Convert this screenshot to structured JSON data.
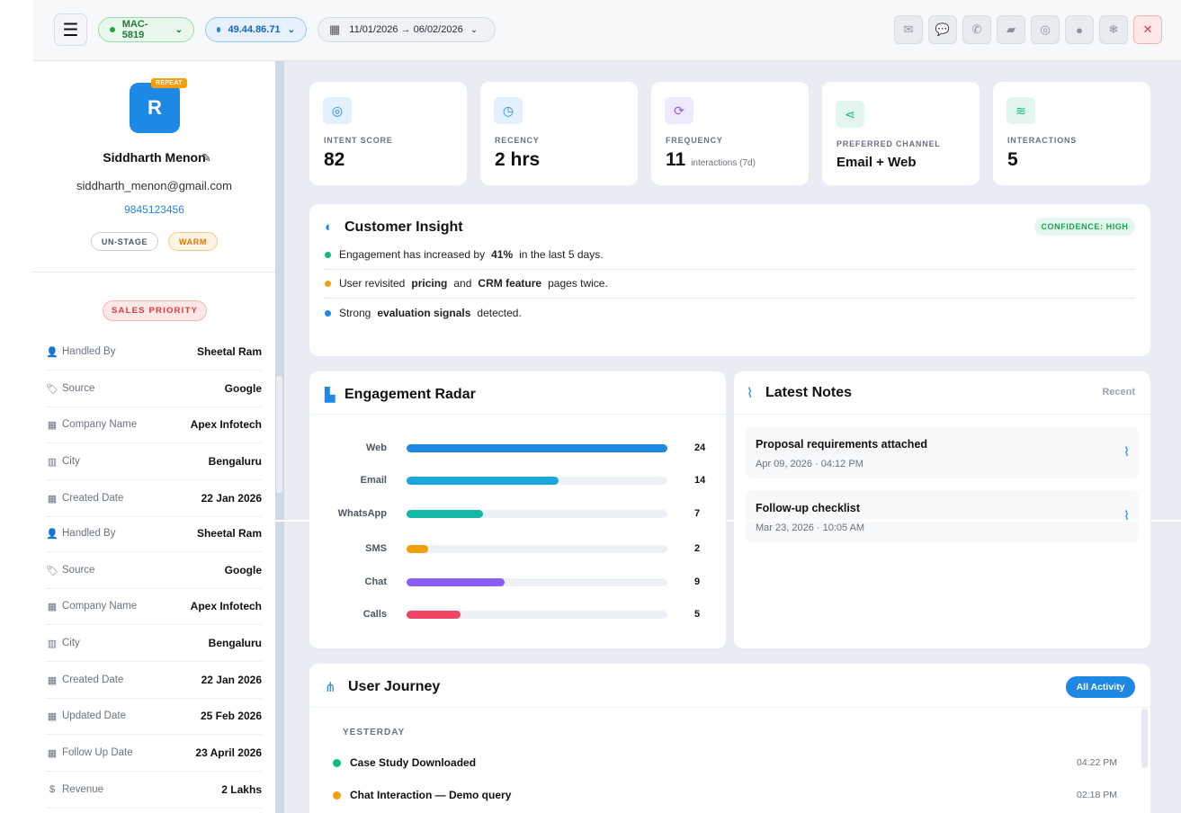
{
  "topbar": {
    "menu_icon": "hamburger-icon",
    "mac_id": "MAC-5819",
    "ip": "49.44.86.71",
    "date_range": "11/01/2026 → 06/02/2026",
    "actions": [
      "mail-icon",
      "message-icon",
      "phone-icon",
      "note-icon",
      "whatsapp-icon",
      "chat-icon",
      "snowflake-icon",
      "close-icon"
    ]
  },
  "profile": {
    "initial": "R",
    "badge": "REPEAT",
    "name": "Siddharth Menon",
    "email": "siddharth_menon@gmail.com",
    "phone": "9845123456",
    "stage": "UN-STAGE",
    "temperature": "WARM",
    "priority": "SALES PRIORITY"
  },
  "details": [
    {
      "icon": "user-icon",
      "label": "Handled By",
      "value": "Sheetal Ram"
    },
    {
      "icon": "tag-icon",
      "label": "Source",
      "value": "Google"
    },
    {
      "icon": "building-icon",
      "label": "Company Name",
      "value": "Apex Infotech"
    },
    {
      "icon": "city-icon",
      "label": "City",
      "value": "Bengaluru"
    },
    {
      "icon": "calendar-icon",
      "label": "Created Date",
      "value": "22 Jan 2026"
    },
    {
      "icon": "user-icon",
      "label": "Handled By",
      "value": "Sheetal Ram"
    },
    {
      "icon": "tag-icon",
      "label": "Source",
      "value": "Google"
    },
    {
      "icon": "building-icon",
      "label": "Company Name",
      "value": "Apex Infotech"
    },
    {
      "icon": "city-icon",
      "label": "City",
      "value": "Bengaluru"
    },
    {
      "icon": "calendar-icon",
      "label": "Created Date",
      "value": "22 Jan 2026"
    },
    {
      "icon": "calendar-icon",
      "label": "Updated Date",
      "value": "25 Feb 2026"
    },
    {
      "icon": "calendar-icon",
      "label": "Follow Up Date",
      "value": "23 April 2026"
    },
    {
      "icon": "rupee-icon",
      "label": "Revenue",
      "value": "2 Lakhs"
    }
  ],
  "kpis": [
    {
      "icon": "target-icon",
      "label": "INTENT SCORE",
      "value": "82",
      "sub": ""
    },
    {
      "icon": "clock-icon",
      "label": "RECENCY",
      "value": "2 hrs",
      "sub": ""
    },
    {
      "icon": "refresh-icon",
      "label": "FREQUENCY",
      "value": "11",
      "sub": "interactions (7d)"
    },
    {
      "icon": "share-icon",
      "label": "PREFERRED CHANNEL",
      "value": "Email + Web",
      "sub": ""
    },
    {
      "icon": "layers-icon",
      "label": "INTERACTIONS",
      "value": "5",
      "sub": ""
    }
  ],
  "insight": {
    "title": "Customer Insight",
    "confidence": "CONFIDENCE: HIGH",
    "lines": [
      {
        "color": "#10b981",
        "a": "Engagement has increased by",
        "b": "41%",
        "c": "in the last 5 days.",
        "d": "",
        "e": ""
      },
      {
        "color": "#f59e0b",
        "a": "User revisited",
        "b": "pricing",
        "c": "and",
        "d": "CRM feature",
        "e": "pages twice."
      },
      {
        "color": "#1e88e5",
        "a": "Strong",
        "b": "evaluation signals",
        "c": "detected.",
        "d": "",
        "e": ""
      }
    ]
  },
  "radar": {
    "title": "Engagement Radar",
    "channels": [
      {
        "label": "Web",
        "value": 24,
        "color": "#1e88e5"
      },
      {
        "label": "Email",
        "value": 14,
        "color": "#1ba6e0"
      },
      {
        "label": "WhatsApp",
        "value": 7,
        "color": "#14b8a6"
      },
      {
        "label": "SMS",
        "value": 2,
        "color": "#f59e0b"
      },
      {
        "label": "Chat",
        "value": 9,
        "color": "#8b5cf6"
      },
      {
        "label": "Calls",
        "value": 5,
        "color": "#ef4462"
      }
    ],
    "max": 24
  },
  "notes": {
    "title": "Latest Notes",
    "filter": "Recent",
    "items": [
      {
        "title": "Proposal requirements attached",
        "meta": "Apr 09, 2026 · 04:12 PM"
      },
      {
        "title": "Follow-up checklist",
        "meta": "Mar 23, 2026 · 10:05 AM"
      }
    ]
  },
  "journey": {
    "title": "User Journey",
    "button": "All Activity",
    "group": "YESTERDAY",
    "items": [
      {
        "label": "Case Study Downloaded",
        "time": "04:22 PM",
        "color": "#10b981"
      },
      {
        "label": "Chat Interaction — Demo query",
        "time": "02:18 PM",
        "color": "#f59e0b"
      }
    ]
  }
}
